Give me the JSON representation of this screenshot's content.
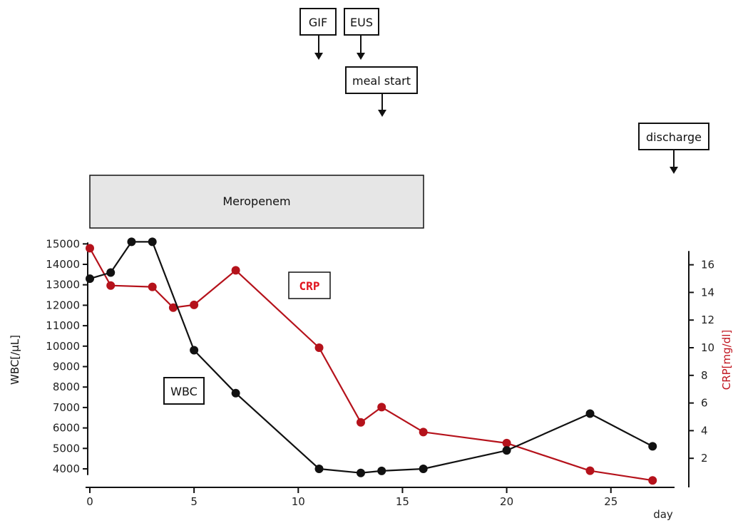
{
  "chart_data": {
    "type": "line",
    "x": [
      0,
      1,
      2,
      3,
      4,
      5,
      7,
      11,
      13,
      14,
      16,
      20,
      24,
      27
    ],
    "xlabel": "day",
    "xlim": [
      0,
      28
    ],
    "x_ticks": [
      0,
      5,
      10,
      15,
      20,
      25
    ],
    "series": [
      {
        "name": "WBC",
        "axis": "left",
        "color": "#111111",
        "points": [
          [
            0,
            13300
          ],
          [
            1,
            13600
          ],
          [
            2,
            15100
          ],
          [
            3,
            15100
          ],
          [
            5,
            9800
          ],
          [
            7,
            7700
          ],
          [
            11,
            4000
          ],
          [
            13,
            3800
          ],
          [
            14,
            3900
          ],
          [
            16,
            4000
          ],
          [
            20,
            4900
          ],
          [
            24,
            6700
          ],
          [
            27,
            5100
          ]
        ]
      },
      {
        "name": "CRP",
        "axis": "right",
        "color": "#b5121b",
        "points": [
          [
            0,
            17.2
          ],
          [
            1,
            14.5
          ],
          [
            3,
            14.4
          ],
          [
            4,
            12.9
          ],
          [
            5,
            13.1
          ],
          [
            7,
            15.6
          ],
          [
            11,
            10.0
          ],
          [
            13,
            4.6
          ],
          [
            14,
            5.7
          ],
          [
            16,
            3.9
          ],
          [
            20,
            3.1
          ],
          [
            24,
            1.1
          ],
          [
            27,
            0.4
          ]
        ]
      }
    ],
    "y_left": {
      "label": "WBC[/µL]",
      "lim": [
        3800,
        15000
      ],
      "ticks": [
        4000,
        5000,
        6000,
        7000,
        8000,
        9000,
        10000,
        11000,
        12000,
        13000,
        14000,
        15000
      ]
    },
    "y_right": {
      "label": "CRP[mg/dl]",
      "lim": [
        0,
        17
      ],
      "ticks": [
        2,
        4,
        6,
        8,
        10,
        12,
        14,
        16
      ]
    },
    "series_labels": {
      "wbc": "WBC",
      "crp": "CRP"
    },
    "annotations": {
      "gif": "GIF",
      "eus": "EUS",
      "meal_start": "meal start",
      "discharge": "discharge",
      "treatment": "Meropenem"
    },
    "grid": false
  }
}
